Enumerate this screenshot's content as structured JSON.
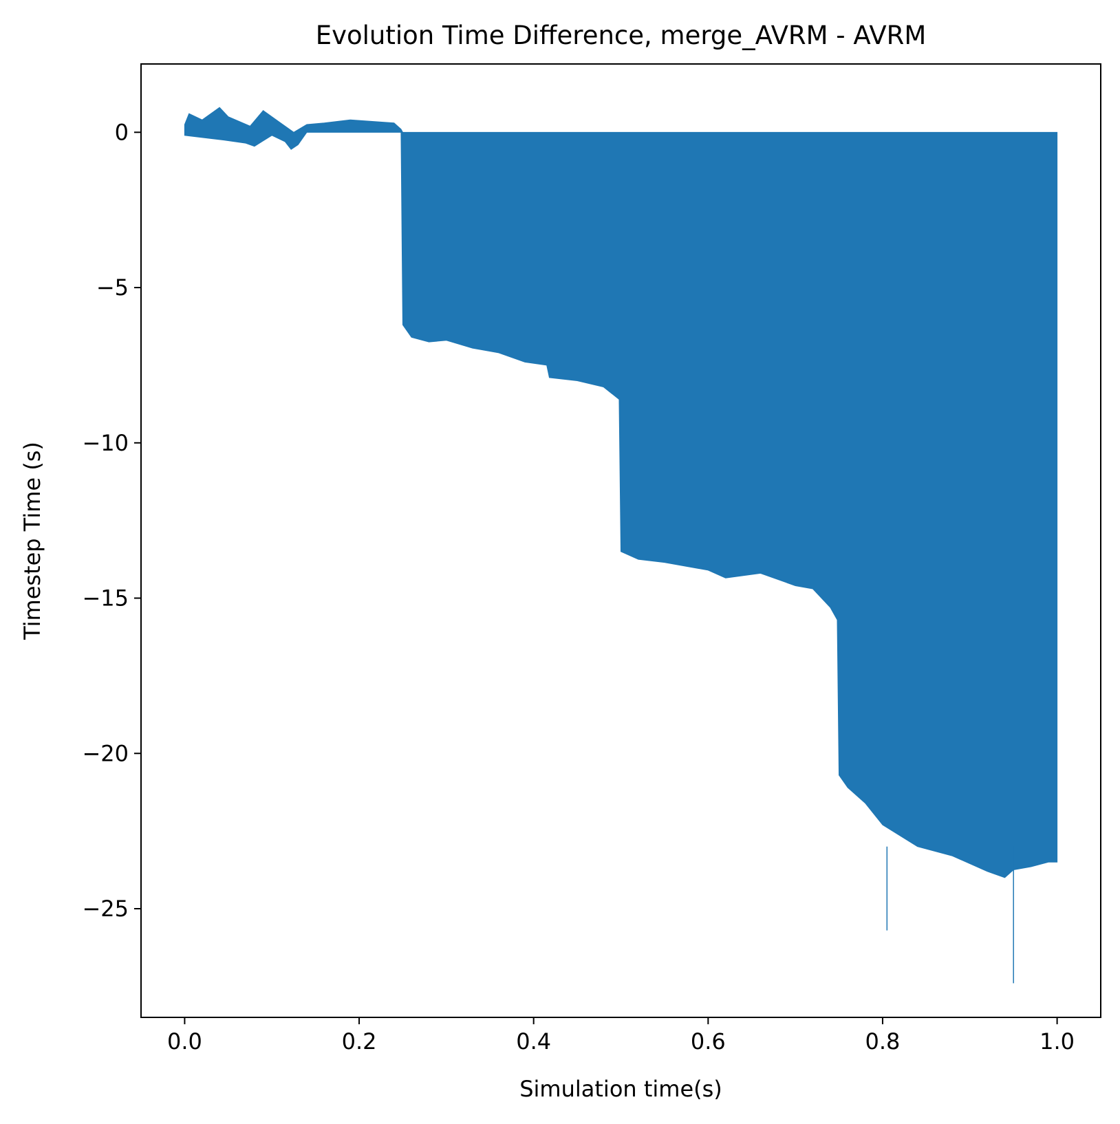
{
  "chart_data": {
    "type": "bar",
    "title": "Evolution Time Difference, merge_AVRM - AVRM",
    "xlabel": "Simulation time(s)",
    "ylabel": "Timestep Time (s)",
    "xlim": [
      -0.05,
      1.05
    ],
    "ylim": [
      -28.5,
      2.2
    ],
    "grid": false,
    "legend": "none",
    "color": "#1f77b4",
    "xticks": [
      {
        "value": 0.0,
        "label": "0.0"
      },
      {
        "value": 0.2,
        "label": "0.2"
      },
      {
        "value": 0.4,
        "label": "0.4"
      },
      {
        "value": 0.6,
        "label": "0.6"
      },
      {
        "value": 0.8,
        "label": "0.8"
      },
      {
        "value": 1.0,
        "label": "1.0"
      }
    ],
    "yticks": [
      {
        "value": 0,
        "label": "0"
      },
      {
        "value": -5,
        "label": "−5"
      },
      {
        "value": -10,
        "label": "−10"
      },
      {
        "value": -15,
        "label": "−15"
      },
      {
        "value": -20,
        "label": "−20"
      },
      {
        "value": -25,
        "label": "−25"
      }
    ],
    "envelope": {
      "lower": [
        [
          0.0,
          -0.1
        ],
        [
          0.03,
          -0.2
        ],
        [
          0.045,
          -0.25
        ],
        [
          0.07,
          -0.35
        ],
        [
          0.08,
          -0.45
        ],
        [
          0.1,
          -0.1
        ],
        [
          0.115,
          -0.3
        ],
        [
          0.122,
          -0.55
        ],
        [
          0.13,
          -0.4
        ],
        [
          0.14,
          0.0
        ],
        [
          0.248,
          0.0
        ],
        [
          0.25,
          -6.2
        ],
        [
          0.26,
          -6.6
        ],
        [
          0.28,
          -6.75
        ],
        [
          0.3,
          -6.7
        ],
        [
          0.33,
          -6.95
        ],
        [
          0.36,
          -7.1
        ],
        [
          0.39,
          -7.4
        ],
        [
          0.415,
          -7.5
        ],
        [
          0.418,
          -7.9
        ],
        [
          0.45,
          -8.0
        ],
        [
          0.48,
          -8.2
        ],
        [
          0.498,
          -8.6
        ],
        [
          0.5,
          -13.5
        ],
        [
          0.52,
          -13.75
        ],
        [
          0.55,
          -13.85
        ],
        [
          0.6,
          -14.1
        ],
        [
          0.62,
          -14.35
        ],
        [
          0.66,
          -14.2
        ],
        [
          0.7,
          -14.6
        ],
        [
          0.72,
          -14.7
        ],
        [
          0.74,
          -15.3
        ],
        [
          0.748,
          -15.7
        ],
        [
          0.75,
          -20.7
        ],
        [
          0.76,
          -21.1
        ],
        [
          0.78,
          -21.6
        ],
        [
          0.8,
          -22.3
        ],
        [
          0.84,
          -23.0
        ],
        [
          0.88,
          -23.3
        ],
        [
          0.92,
          -23.8
        ],
        [
          0.94,
          -24.0
        ],
        [
          0.95,
          -23.75
        ],
        [
          0.97,
          -23.65
        ],
        [
          0.99,
          -23.5
        ],
        [
          1.0,
          -23.5
        ]
      ],
      "upper": [
        [
          0.0,
          0.25
        ],
        [
          0.005,
          0.6
        ],
        [
          0.02,
          0.4
        ],
        [
          0.04,
          0.8
        ],
        [
          0.05,
          0.5
        ],
        [
          0.075,
          0.2
        ],
        [
          0.09,
          0.7
        ],
        [
          0.11,
          0.3
        ],
        [
          0.125,
          0.0
        ],
        [
          0.14,
          0.25
        ],
        [
          0.16,
          0.3
        ],
        [
          0.19,
          0.4
        ],
        [
          0.24,
          0.3
        ],
        [
          0.248,
          0.1
        ],
        [
          0.25,
          0.0
        ],
        [
          1.0,
          0.0
        ]
      ],
      "spikes": [
        {
          "x": 0.805,
          "y": -25.7
        },
        {
          "x": 0.95,
          "y": -27.4
        }
      ]
    }
  }
}
